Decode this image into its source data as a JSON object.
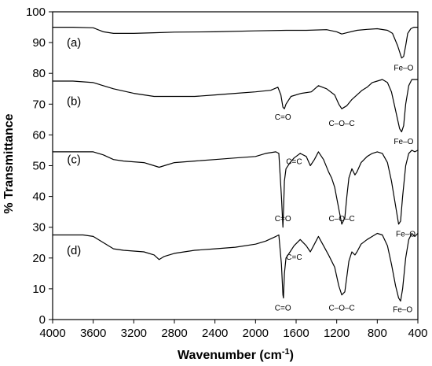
{
  "chart_data": {
    "type": "line",
    "xlabel": "Wavenumber (cm",
    "xlabel_sup": "-1",
    "xlabel_end": ")",
    "ylabel": "% Transmittance",
    "xlim": [
      4000,
      400
    ],
    "ylim": [
      0,
      100
    ],
    "x_reversed": true,
    "grid": false,
    "x_ticks": [
      4000,
      3600,
      3200,
      2800,
      2400,
      2000,
      1600,
      1200,
      800,
      400
    ],
    "y_ticks": [
      0,
      10,
      20,
      30,
      40,
      50,
      60,
      70,
      80,
      90,
      100
    ],
    "series": [
      {
        "name": "(a)",
        "label_at": [
          3790,
          90
        ],
        "points": [
          [
            4000,
            95
          ],
          [
            3800,
            95
          ],
          [
            3600,
            94.8
          ],
          [
            3500,
            93.5
          ],
          [
            3400,
            93
          ],
          [
            3200,
            93
          ],
          [
            3000,
            93.2
          ],
          [
            2800,
            93.4
          ],
          [
            2400,
            93.5
          ],
          [
            2000,
            93.8
          ],
          [
            1700,
            94
          ],
          [
            1500,
            94
          ],
          [
            1300,
            94.2
          ],
          [
            1200,
            93.5
          ],
          [
            1150,
            92.8
          ],
          [
            1100,
            93.2
          ],
          [
            1000,
            94
          ],
          [
            900,
            94.3
          ],
          [
            800,
            94.5
          ],
          [
            700,
            94
          ],
          [
            650,
            93
          ],
          [
            600,
            89
          ],
          [
            560,
            85
          ],
          [
            540,
            85.5
          ],
          [
            520,
            89
          ],
          [
            500,
            93
          ],
          [
            470,
            94.5
          ],
          [
            440,
            95
          ],
          [
            400,
            95
          ]
        ],
        "peaks": [
          {
            "label": "Fe–O",
            "x": 540,
            "y": 82
          }
        ]
      },
      {
        "name": "(b)",
        "label_at": [
          3790,
          71
        ],
        "points": [
          [
            4000,
            77.5
          ],
          [
            3800,
            77.5
          ],
          [
            3600,
            77
          ],
          [
            3400,
            75
          ],
          [
            3200,
            73.5
          ],
          [
            3000,
            72.5
          ],
          [
            2800,
            72.5
          ],
          [
            2600,
            72.5
          ],
          [
            2400,
            73
          ],
          [
            2200,
            73.5
          ],
          [
            2000,
            74
          ],
          [
            1850,
            74.5
          ],
          [
            1780,
            75.5
          ],
          [
            1750,
            73
          ],
          [
            1730,
            69
          ],
          [
            1715,
            68.5
          ],
          [
            1700,
            70
          ],
          [
            1650,
            72.5
          ],
          [
            1550,
            73.5
          ],
          [
            1450,
            74
          ],
          [
            1380,
            76
          ],
          [
            1300,
            75
          ],
          [
            1220,
            73
          ],
          [
            1180,
            70
          ],
          [
            1150,
            68.5
          ],
          [
            1100,
            69.5
          ],
          [
            1050,
            71.5
          ],
          [
            1000,
            73
          ],
          [
            950,
            74.5
          ],
          [
            900,
            75.5
          ],
          [
            850,
            77
          ],
          [
            800,
            77.5
          ],
          [
            750,
            78
          ],
          [
            700,
            77
          ],
          [
            660,
            74
          ],
          [
            620,
            68
          ],
          [
            580,
            62
          ],
          [
            560,
            61
          ],
          [
            540,
            63
          ],
          [
            520,
            70
          ],
          [
            490,
            76
          ],
          [
            460,
            78
          ],
          [
            430,
            78
          ],
          [
            400,
            78
          ]
        ],
        "peaks": [
          {
            "label": "C=O",
            "x": 1730,
            "y": 66
          },
          {
            "label": "C–O–C",
            "x": 1150,
            "y": 64
          },
          {
            "label": "Fe–O",
            "x": 540,
            "y": 58
          }
        ]
      },
      {
        "name": "(c)",
        "label_at": [
          3790,
          52
        ],
        "points": [
          [
            4000,
            54.5
          ],
          [
            3700,
            54.5
          ],
          [
            3600,
            54.5
          ],
          [
            3500,
            53.5
          ],
          [
            3400,
            52
          ],
          [
            3300,
            51.5
          ],
          [
            3100,
            51
          ],
          [
            3000,
            50
          ],
          [
            2950,
            49.5
          ],
          [
            2900,
            50
          ],
          [
            2800,
            51
          ],
          [
            2600,
            51.5
          ],
          [
            2400,
            52
          ],
          [
            2200,
            52.5
          ],
          [
            2000,
            53
          ],
          [
            1900,
            54
          ],
          [
            1800,
            54.5
          ],
          [
            1770,
            54
          ],
          [
            1745,
            40
          ],
          [
            1730,
            30
          ],
          [
            1725,
            35
          ],
          [
            1715,
            45
          ],
          [
            1700,
            49
          ],
          [
            1660,
            51
          ],
          [
            1620,
            52.5
          ],
          [
            1560,
            54
          ],
          [
            1500,
            53
          ],
          [
            1460,
            50
          ],
          [
            1420,
            52
          ],
          [
            1380,
            54.5
          ],
          [
            1330,
            52
          ],
          [
            1280,
            48
          ],
          [
            1250,
            46
          ],
          [
            1220,
            43
          ],
          [
            1180,
            36
          ],
          [
            1150,
            31
          ],
          [
            1120,
            33
          ],
          [
            1100,
            40
          ],
          [
            1080,
            46
          ],
          [
            1050,
            49
          ],
          [
            1020,
            47
          ],
          [
            1000,
            48
          ],
          [
            960,
            51
          ],
          [
            900,
            53
          ],
          [
            850,
            54
          ],
          [
            800,
            54.5
          ],
          [
            750,
            54
          ],
          [
            700,
            51
          ],
          [
            660,
            45
          ],
          [
            620,
            37
          ],
          [
            590,
            31
          ],
          [
            570,
            32
          ],
          [
            550,
            40
          ],
          [
            520,
            50
          ],
          [
            490,
            54
          ],
          [
            460,
            55
          ],
          [
            430,
            54.5
          ],
          [
            400,
            55
          ]
        ],
        "peaks": [
          {
            "label": "C=C",
            "x": 1620,
            "y": 51.5
          },
          {
            "label": "C=O",
            "x": 1730,
            "y": 33
          },
          {
            "label": "C–O–C",
            "x": 1150,
            "y": 33
          },
          {
            "label": "Fe–O",
            "x": 520,
            "y": 28
          }
        ]
      },
      {
        "name": "(d)",
        "label_at": [
          3790,
          22.5
        ],
        "points": [
          [
            4000,
            27.5
          ],
          [
            3800,
            27.5
          ],
          [
            3700,
            27.5
          ],
          [
            3600,
            27
          ],
          [
            3500,
            25
          ],
          [
            3400,
            23
          ],
          [
            3300,
            22.5
          ],
          [
            3100,
            22
          ],
          [
            3000,
            21
          ],
          [
            2950,
            19.5
          ],
          [
            2900,
            20.5
          ],
          [
            2800,
            21.5
          ],
          [
            2600,
            22.5
          ],
          [
            2400,
            23
          ],
          [
            2200,
            23.5
          ],
          [
            2000,
            24.5
          ],
          [
            1900,
            25.5
          ],
          [
            1800,
            27
          ],
          [
            1770,
            27.5
          ],
          [
            1745,
            18
          ],
          [
            1730,
            8
          ],
          [
            1725,
            7
          ],
          [
            1715,
            15
          ],
          [
            1700,
            20
          ],
          [
            1660,
            22
          ],
          [
            1620,
            24
          ],
          [
            1560,
            26
          ],
          [
            1500,
            24
          ],
          [
            1460,
            22
          ],
          [
            1420,
            24.5
          ],
          [
            1380,
            27
          ],
          [
            1330,
            24
          ],
          [
            1280,
            21
          ],
          [
            1250,
            19
          ],
          [
            1220,
            17
          ],
          [
            1180,
            11
          ],
          [
            1150,
            8
          ],
          [
            1120,
            9
          ],
          [
            1100,
            14
          ],
          [
            1080,
            19
          ],
          [
            1050,
            22
          ],
          [
            1020,
            21
          ],
          [
            1000,
            22
          ],
          [
            960,
            24.5
          ],
          [
            900,
            26
          ],
          [
            850,
            27
          ],
          [
            800,
            28
          ],
          [
            750,
            27.5
          ],
          [
            700,
            24
          ],
          [
            660,
            18
          ],
          [
            620,
            11
          ],
          [
            590,
            7
          ],
          [
            570,
            6
          ],
          [
            550,
            10
          ],
          [
            520,
            20
          ],
          [
            490,
            26
          ],
          [
            460,
            28
          ],
          [
            430,
            27
          ],
          [
            400,
            28
          ]
        ],
        "peaks": [
          {
            "label": "C=C",
            "x": 1620,
            "y": 20.5
          },
          {
            "label": "C=O",
            "x": 1730,
            "y": 4
          },
          {
            "label": "C–O–C",
            "x": 1150,
            "y": 4
          },
          {
            "label": "Fe–O",
            "x": 550,
            "y": 3.5
          }
        ]
      }
    ]
  }
}
